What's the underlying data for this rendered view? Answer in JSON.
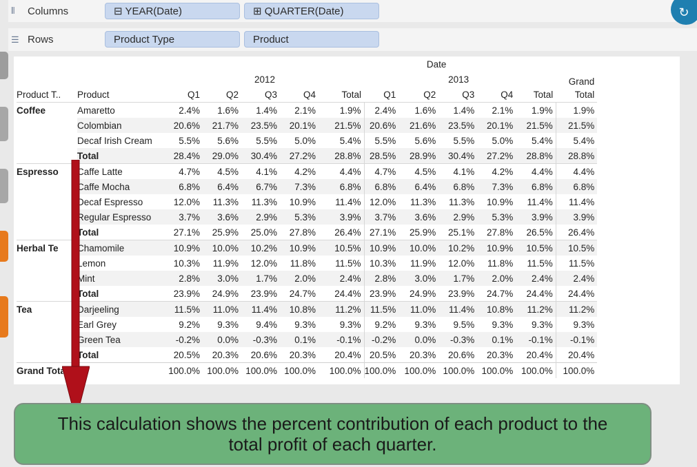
{
  "shelves": {
    "columns": {
      "label": "Columns",
      "pills": [
        "⊟ YEAR(Date)",
        "⊞ QUARTER(Date)"
      ]
    },
    "rows": {
      "label": "Rows",
      "pills": [
        "Product Type",
        "Product"
      ]
    }
  },
  "table": {
    "date_header": "Date",
    "years": [
      "2012",
      "2013"
    ],
    "grand_total_header_line1": "Grand",
    "grand_total_header_line2": "Total",
    "row_headers": [
      "Product T..",
      "Product"
    ],
    "quarter_labels": [
      "Q1",
      "Q2",
      "Q3",
      "Q4",
      "Total"
    ],
    "groups": [
      {
        "name": "Coffee",
        "rows": [
          {
            "product": "Amaretto",
            "vals": [
              "2.4%",
              "1.6%",
              "1.4%",
              "2.1%",
              "1.9%",
              "2.4%",
              "1.6%",
              "1.4%",
              "2.1%",
              "1.9%",
              "1.9%"
            ]
          },
          {
            "product": "Colombian",
            "vals": [
              "20.6%",
              "21.7%",
              "23.5%",
              "20.1%",
              "21.5%",
              "20.6%",
              "21.6%",
              "23.5%",
              "20.1%",
              "21.5%",
              "21.5%"
            ]
          },
          {
            "product": "Decaf Irish Cream",
            "vals": [
              "5.5%",
              "5.6%",
              "5.5%",
              "5.0%",
              "5.4%",
              "5.5%",
              "5.6%",
              "5.5%",
              "5.0%",
              "5.4%",
              "5.4%"
            ]
          },
          {
            "product": "Total",
            "vals": [
              "28.4%",
              "29.0%",
              "30.4%",
              "27.2%",
              "28.8%",
              "28.5%",
              "28.9%",
              "30.4%",
              "27.2%",
              "28.8%",
              "28.8%"
            ]
          }
        ]
      },
      {
        "name": "Espresso",
        "rows": [
          {
            "product": "Caffe Latte",
            "vals": [
              "4.7%",
              "4.5%",
              "4.1%",
              "4.2%",
              "4.4%",
              "4.7%",
              "4.5%",
              "4.1%",
              "4.2%",
              "4.4%",
              "4.4%"
            ]
          },
          {
            "product": "Caffe Mocha",
            "vals": [
              "6.8%",
              "6.4%",
              "6.7%",
              "7.3%",
              "6.8%",
              "6.8%",
              "6.4%",
              "6.8%",
              "7.3%",
              "6.8%",
              "6.8%"
            ]
          },
          {
            "product": "Decaf Espresso",
            "vals": [
              "12.0%",
              "11.3%",
              "11.3%",
              "10.9%",
              "11.4%",
              "12.0%",
              "11.3%",
              "11.3%",
              "10.9%",
              "11.4%",
              "11.4%"
            ]
          },
          {
            "product": "Regular Espresso",
            "vals": [
              "3.7%",
              "3.6%",
              "2.9%",
              "5.3%",
              "3.9%",
              "3.7%",
              "3.6%",
              "2.9%",
              "5.3%",
              "3.9%",
              "3.9%"
            ]
          },
          {
            "product": "Total",
            "vals": [
              "27.1%",
              "25.9%",
              "25.0%",
              "27.8%",
              "26.4%",
              "27.1%",
              "25.9%",
              "25.1%",
              "27.8%",
              "26.5%",
              "26.4%"
            ]
          }
        ]
      },
      {
        "name": "Herbal Te",
        "rows": [
          {
            "product": "Chamomile",
            "vals": [
              "10.9%",
              "10.0%",
              "10.2%",
              "10.9%",
              "10.5%",
              "10.9%",
              "10.0%",
              "10.2%",
              "10.9%",
              "10.5%",
              "10.5%"
            ]
          },
          {
            "product": "Lemon",
            "vals": [
              "10.3%",
              "11.9%",
              "12.0%",
              "11.8%",
              "11.5%",
              "10.3%",
              "11.9%",
              "12.0%",
              "11.8%",
              "11.5%",
              "11.5%"
            ]
          },
          {
            "product": "Mint",
            "vals": [
              "2.8%",
              "3.0%",
              "1.7%",
              "2.0%",
              "2.4%",
              "2.8%",
              "3.0%",
              "1.7%",
              "2.0%",
              "2.4%",
              "2.4%"
            ]
          },
          {
            "product": "Total",
            "vals": [
              "23.9%",
              "24.9%",
              "23.9%",
              "24.7%",
              "24.4%",
              "23.9%",
              "24.9%",
              "23.9%",
              "24.7%",
              "24.4%",
              "24.4%"
            ]
          }
        ]
      },
      {
        "name": "Tea",
        "rows": [
          {
            "product": "Darjeeling",
            "vals": [
              "11.5%",
              "11.0%",
              "11.4%",
              "10.8%",
              "11.2%",
              "11.5%",
              "11.0%",
              "11.4%",
              "10.8%",
              "11.2%",
              "11.2%"
            ]
          },
          {
            "product": "Earl Grey",
            "vals": [
              "9.2%",
              "9.3%",
              "9.4%",
              "9.3%",
              "9.3%",
              "9.2%",
              "9.3%",
              "9.5%",
              "9.3%",
              "9.3%",
              "9.3%"
            ]
          },
          {
            "product": "Green Tea",
            "vals": [
              "-0.2%",
              "0.0%",
              "-0.3%",
              "0.1%",
              "-0.1%",
              "-0.2%",
              "0.0%",
              "-0.3%",
              "0.1%",
              "-0.1%",
              "-0.1%"
            ]
          },
          {
            "product": "Total",
            "vals": [
              "20.5%",
              "20.3%",
              "20.6%",
              "20.3%",
              "20.4%",
              "20.5%",
              "20.3%",
              "20.6%",
              "20.3%",
              "20.4%",
              "20.4%"
            ]
          }
        ]
      }
    ],
    "grand_total": {
      "label": "Grand Total",
      "vals": [
        "100.0%",
        "100.0%",
        "100.0%",
        "100.0%",
        "100.0%",
        "100.0%",
        "100.0%",
        "100.0%",
        "100.0%",
        "100.0%",
        "100.0%"
      ]
    }
  },
  "callout_text": "This calculation shows the percent contribution of each product to the total profit of each quarter.",
  "colors": {
    "arrow": "#b0101a",
    "callout_bg": "#6cb27a",
    "pill_bg": "#c9d8ef",
    "refresh_bg": "#1f7fb0",
    "edge_tab_orange": "#e77a1d"
  },
  "icons": {
    "columns": "columns-icon",
    "rows": "rows-icon",
    "refresh": "refresh-icon",
    "arrow": "down-arrow-icon"
  }
}
